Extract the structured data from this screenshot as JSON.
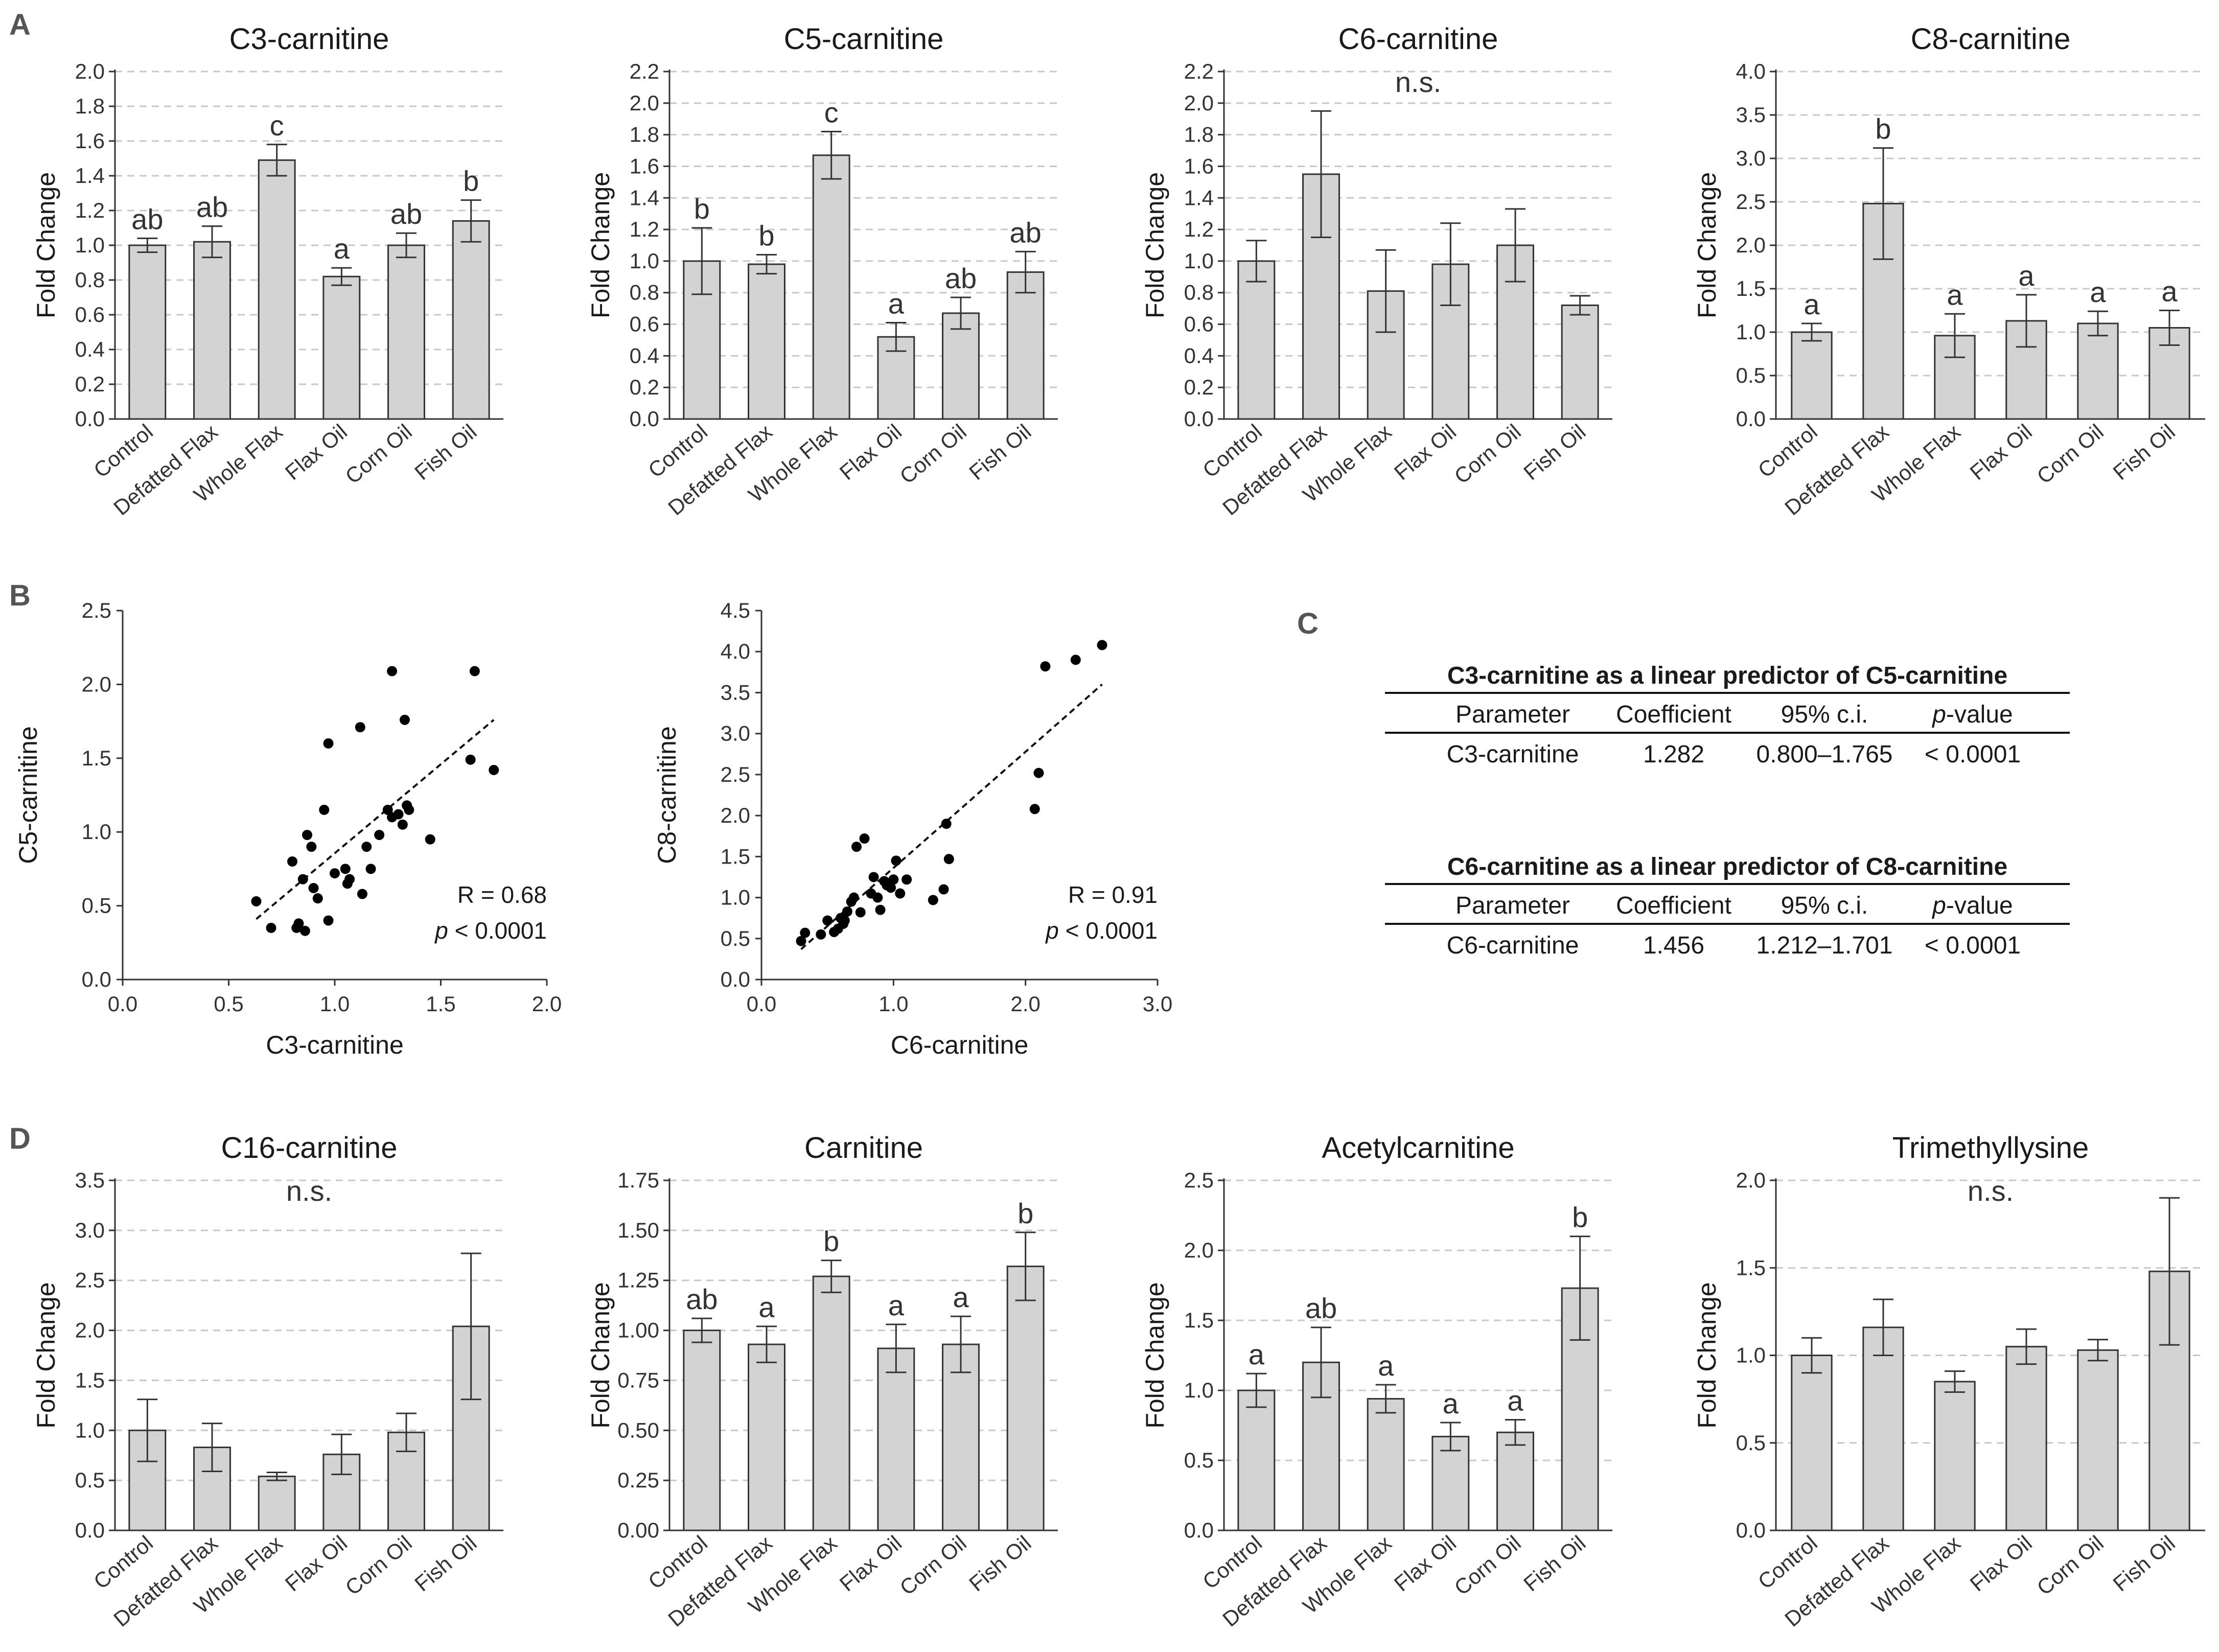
{
  "panel_labels": [
    "A",
    "B",
    "C",
    "D"
  ],
  "chart_data": [
    {
      "id": "A1",
      "type": "bar",
      "title": "C3-carnitine",
      "ylabel": "Fold Change",
      "xlabel": "",
      "categories": [
        "Control",
        "Defatted Flax",
        "Whole Flax",
        "Flax Oil",
        "Corn Oil",
        "Fish Oil"
      ],
      "values": [
        1.0,
        1.02,
        1.49,
        0.82,
        1.0,
        1.14
      ],
      "errors": [
        0.04,
        0.09,
        0.09,
        0.05,
        0.07,
        0.12
      ],
      "labels": [
        "ab",
        "ab",
        "c",
        "a",
        "ab",
        "b"
      ],
      "ylim": [
        0,
        2.0
      ],
      "yticks": [
        "0.0",
        "0.2",
        "0.4",
        "0.6",
        "0.8",
        "1.0",
        "1.2",
        "1.4",
        "1.6",
        "1.8",
        "2.0"
      ],
      "note": ""
    },
    {
      "id": "A2",
      "type": "bar",
      "title": "C5-carnitine",
      "ylabel": "Fold Change",
      "xlabel": "",
      "categories": [
        "Control",
        "Defatted Flax",
        "Whole Flax",
        "Flax Oil",
        "Corn Oil",
        "Fish Oil"
      ],
      "values": [
        1.0,
        0.98,
        1.67,
        0.52,
        0.67,
        0.93
      ],
      "errors": [
        0.21,
        0.06,
        0.15,
        0.09,
        0.1,
        0.13
      ],
      "labels": [
        "b",
        "b",
        "c",
        "a",
        "ab",
        "ab"
      ],
      "ylim": [
        0,
        2.2
      ],
      "yticks": [
        "0.0",
        "0.2",
        "0.4",
        "0.6",
        "0.8",
        "1.0",
        "1.2",
        "1.4",
        "1.6",
        "1.8",
        "2.0",
        "2.2"
      ],
      "note": ""
    },
    {
      "id": "A3",
      "type": "bar",
      "title": "C6-carnitine",
      "ylabel": "Fold Change",
      "xlabel": "",
      "categories": [
        "Control",
        "Defatted Flax",
        "Whole Flax",
        "Flax Oil",
        "Corn Oil",
        "Fish Oil"
      ],
      "values": [
        1.0,
        1.55,
        0.81,
        0.98,
        1.1,
        0.72
      ],
      "errors": [
        0.13,
        0.4,
        0.26,
        0.26,
        0.23,
        0.06
      ],
      "labels": [
        "",
        "",
        "",
        "",
        "",
        ""
      ],
      "ylim": [
        0,
        2.2
      ],
      "yticks": [
        "0.0",
        "0.2",
        "0.4",
        "0.6",
        "0.8",
        "1.0",
        "1.2",
        "1.4",
        "1.6",
        "1.8",
        "2.0",
        "2.2"
      ],
      "note": "n.s."
    },
    {
      "id": "A4",
      "type": "bar",
      "title": "C8-carnitine",
      "ylabel": "Fold Change",
      "xlabel": "",
      "categories": [
        "Control",
        "Defatted Flax",
        "Whole Flax",
        "Flax Oil",
        "Corn Oil",
        "Fish Oil"
      ],
      "values": [
        1.0,
        2.48,
        0.96,
        1.13,
        1.1,
        1.05
      ],
      "errors": [
        0.1,
        0.64,
        0.25,
        0.3,
        0.14,
        0.2
      ],
      "labels": [
        "a",
        "b",
        "a",
        "a",
        "a",
        "a"
      ],
      "ylim": [
        0,
        4.0
      ],
      "yticks": [
        "0.0",
        "0.5",
        "1.0",
        "1.5",
        "2.0",
        "2.5",
        "3.0",
        "3.5",
        "4.0"
      ],
      "note": ""
    },
    {
      "id": "B1",
      "type": "scatter",
      "title": "",
      "xlabel": "C3-carnitine",
      "ylabel": "C5-carnitine",
      "xlim": [
        0,
        2.0
      ],
      "ylim": [
        0,
        2.5
      ],
      "xticks": [
        "0.0",
        "0.5",
        "1.0",
        "1.5",
        "2.0"
      ],
      "yticks": [
        "0.0",
        "0.5",
        "1.0",
        "1.5",
        "2.0",
        "2.5"
      ],
      "x": [
        0.63,
        0.7,
        0.8,
        0.82,
        0.83,
        0.85,
        0.86,
        0.87,
        0.89,
        0.9,
        0.92,
        0.95,
        0.97,
        0.97,
        1.05,
        1.06,
        1.12,
        1.13,
        1.15,
        1.17,
        1.21,
        1.25,
        1.27,
        1.3,
        1.32,
        1.33,
        1.34,
        1.35,
        1.45,
        1.64,
        1.66,
        1.75,
        1.27,
        1.07,
        1.0
      ],
      "y": [
        0.53,
        0.35,
        0.8,
        0.35,
        0.38,
        0.68,
        0.33,
        0.98,
        0.9,
        0.62,
        0.55,
        1.15,
        0.4,
        1.6,
        0.75,
        0.65,
        1.71,
        0.58,
        0.9,
        0.75,
        0.98,
        1.15,
        2.09,
        1.12,
        1.05,
        1.76,
        1.18,
        1.15,
        0.95,
        1.49,
        2.09,
        1.42,
        1.1,
        0.68,
        0.72
      ],
      "fit": {
        "x": [
          0.63,
          1.75
        ],
        "y": [
          0.41,
          1.76
        ]
      },
      "stat_r": "R = 0.68",
      "stat_p_label": "p",
      "stat_p_value": " < 0.0001"
    },
    {
      "id": "B2",
      "type": "scatter",
      "title": "",
      "xlabel": "C6-carnitine",
      "ylabel": "C8-carnitine",
      "xlim": [
        0,
        3.0
      ],
      "ylim": [
        0,
        4.5
      ],
      "xticks": [
        "0.0",
        "1.0",
        "2.0",
        "3.0"
      ],
      "yticks": [
        "0.0",
        "0.5",
        "1.0",
        "1.5",
        "2.0",
        "2.5",
        "3.0",
        "3.5",
        "4.0",
        "4.5"
      ],
      "x": [
        0.3,
        0.33,
        0.45,
        0.5,
        0.55,
        0.58,
        0.6,
        0.63,
        0.65,
        0.7,
        0.72,
        0.75,
        0.78,
        0.83,
        0.85,
        0.9,
        0.93,
        0.95,
        0.98,
        1.0,
        1.02,
        1.05,
        1.1,
        1.3,
        1.38,
        1.4,
        1.42,
        2.07,
        2.1,
        2.15,
        2.38,
        2.58,
        0.62,
        0.68,
        0.88
      ],
      "y": [
        0.47,
        0.57,
        0.55,
        0.72,
        0.58,
        0.62,
        0.75,
        0.72,
        0.83,
        1.0,
        1.62,
        0.82,
        1.72,
        1.05,
        1.25,
        0.85,
        1.2,
        1.15,
        1.12,
        1.22,
        1.45,
        1.05,
        1.22,
        0.97,
        1.1,
        1.9,
        1.47,
        2.08,
        2.52,
        3.82,
        3.9,
        4.08,
        0.68,
        0.95,
        1.0
      ],
      "fit": {
        "x": [
          0.3,
          2.58
        ],
        "y": [
          0.37,
          3.6
        ]
      },
      "stat_r": "R = 0.91",
      "stat_p_label": "p",
      "stat_p_value": " < 0.0001"
    },
    {
      "id": "C",
      "type": "table",
      "tables": [
        {
          "title": "C3-carnitine as a linear predictor of C5-carnitine",
          "headers": [
            "Parameter",
            "Coefficient",
            "95% c.i.",
            "p",
            "-value"
          ],
          "row": [
            "C3-carnitine",
            "1.282",
            "0.800–1.765",
            "< 0.0001"
          ]
        },
        {
          "title": "C6-carnitine as a linear predictor of C8-carnitine",
          "headers": [
            "Parameter",
            "Coefficient",
            "95% c.i.",
            "p",
            "-value"
          ],
          "row": [
            "C6-carnitine",
            "1.456",
            "1.212–1.701",
            "< 0.0001"
          ]
        }
      ]
    },
    {
      "id": "D1",
      "type": "bar",
      "title": "C16-carnitine",
      "ylabel": "Fold Change",
      "xlabel": "",
      "categories": [
        "Control",
        "Defatted Flax",
        "Whole Flax",
        "Flax Oil",
        "Corn Oil",
        "Fish Oil"
      ],
      "values": [
        1.0,
        0.83,
        0.54,
        0.76,
        0.98,
        2.04
      ],
      "errors": [
        0.31,
        0.24,
        0.04,
        0.2,
        0.19,
        0.73
      ],
      "labels": [
        "",
        "",
        "",
        "",
        "",
        ""
      ],
      "ylim": [
        0,
        3.5
      ],
      "yticks": [
        "0.0",
        "0.5",
        "1.0",
        "1.5",
        "2.0",
        "2.5",
        "3.0",
        "3.5"
      ],
      "note": "n.s."
    },
    {
      "id": "D2",
      "type": "bar",
      "title": "Carnitine",
      "ylabel": "Fold Change",
      "xlabel": "",
      "categories": [
        "Control",
        "Defatted Flax",
        "Whole Flax",
        "Flax Oil",
        "Corn Oil",
        "Fish Oil"
      ],
      "values": [
        1.0,
        0.93,
        1.27,
        0.91,
        0.93,
        1.32
      ],
      "errors": [
        0.06,
        0.09,
        0.08,
        0.12,
        0.14,
        0.17
      ],
      "labels": [
        "ab",
        "a",
        "b",
        "a",
        "a",
        "b"
      ],
      "ylim": [
        0,
        1.75
      ],
      "yticks": [
        "0.00",
        "0.25",
        "0.50",
        "0.75",
        "1.00",
        "1.25",
        "1.50",
        "1.75"
      ],
      "note": ""
    },
    {
      "id": "D3",
      "type": "bar",
      "title": "Acetylcarnitine",
      "ylabel": "Fold Change",
      "xlabel": "",
      "categories": [
        "Control",
        "Defatted Flax",
        "Whole Flax",
        "Flax Oil",
        "Corn Oil",
        "Fish Oil"
      ],
      "values": [
        1.0,
        1.2,
        0.94,
        0.67,
        0.7,
        1.73
      ],
      "errors": [
        0.12,
        0.25,
        0.1,
        0.1,
        0.09,
        0.37
      ],
      "labels": [
        "a",
        "ab",
        "a",
        "a",
        "a",
        "b"
      ],
      "ylim": [
        0,
        2.5
      ],
      "yticks": [
        "0.0",
        "0.5",
        "1.0",
        "1.5",
        "2.0",
        "2.5"
      ],
      "note": ""
    },
    {
      "id": "D4",
      "type": "bar",
      "title": "Trimethyllysine",
      "ylabel": "Fold Change",
      "xlabel": "",
      "categories": [
        "Control",
        "Defatted Flax",
        "Whole Flax",
        "Flax Oil",
        "Corn Oil",
        "Fish Oil"
      ],
      "values": [
        1.0,
        1.16,
        0.85,
        1.05,
        1.03,
        1.48
      ],
      "errors": [
        0.1,
        0.16,
        0.06,
        0.1,
        0.06,
        0.42
      ],
      "labels": [
        "",
        "",
        "",
        "",
        "",
        ""
      ],
      "ylim": [
        0,
        2.0
      ],
      "yticks": [
        "0.0",
        "0.5",
        "1.0",
        "1.5",
        "2.0"
      ],
      "note": "n.s."
    }
  ],
  "colors": {
    "bar_fill": "#d3d3d3",
    "bar_stroke": "#333333",
    "axis": "#333333",
    "grid": "#c8c8c8",
    "dot": "#000000"
  }
}
